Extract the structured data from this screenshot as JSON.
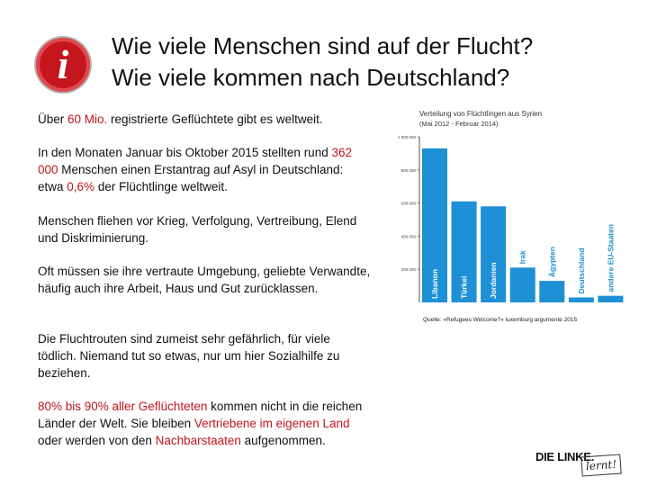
{
  "title": {
    "line1": "Wie viele Menschen sind auf der Flucht?",
    "line2": "Wie viele kommen nach Deutschland?"
  },
  "paragraphs": {
    "p1": {
      "a": "Über ",
      "b": "60 Mio.",
      "c": " registrierte Geflüchtete gibt es weltweit."
    },
    "p2": {
      "a": "In den Monaten Januar bis Oktober 2015 stellten rund ",
      "b": "362 000",
      "c": " Menschen einen Erstantrag auf Asyl in Deutschland: etwa ",
      "d": "0,6%",
      "e": " der Flüchtlinge weltweit."
    },
    "p3": "Menschen fliehen vor Krieg, Verfolgung, Vertreibung, Elend und Diskriminierung.",
    "p4": "Oft müssen sie ihre vertraute Umgebung, geliebte Verwandte, häufig auch ihre Arbeit, Haus und Gut zurücklassen.",
    "p5": "Die Fluchtrouten sind zumeist sehr gefährlich, für viele tödlich. Niemand tut so etwas, nur um hier Sozialhilfe zu beziehen.",
    "p6": {
      "a": "80% bis 90% aller Geflüchteten",
      "b": " kommen nicht in die reichen Länder der Welt. Sie bleiben ",
      "c": "Vertriebene im eigenen Land",
      "d": " oder werden von den ",
      "e": "Nachbarstaaten",
      "f": " aufgenommen."
    }
  },
  "source": "Quelle: »Refugees Welcome?« luxemburg argumente 2015",
  "logo": {
    "name": "DIE LINKE.",
    "badge": "lernt!"
  },
  "colors": {
    "accent": "#c0151b",
    "bar": "#1e90d6",
    "axis": "#555555"
  },
  "chart_data": {
    "type": "bar",
    "title": "Verteilung von Flüchtlingen aus Syrien",
    "subtitle": "(Mai 2012 - Februar 2014)",
    "categories": [
      "Libanon",
      "Türkei",
      "Jordanien",
      "Irak",
      "Ägypten",
      "Deutschland",
      "andere EU-Staaten"
    ],
    "values": [
      930000,
      610000,
      580000,
      210000,
      130000,
      30000,
      40000
    ],
    "ytick_labels": [
      "1.000.000",
      "800.000",
      "600.000",
      "400.000",
      "200.000"
    ],
    "ylim": [
      0,
      1000000
    ],
    "xlabel": "",
    "ylabel": ""
  }
}
